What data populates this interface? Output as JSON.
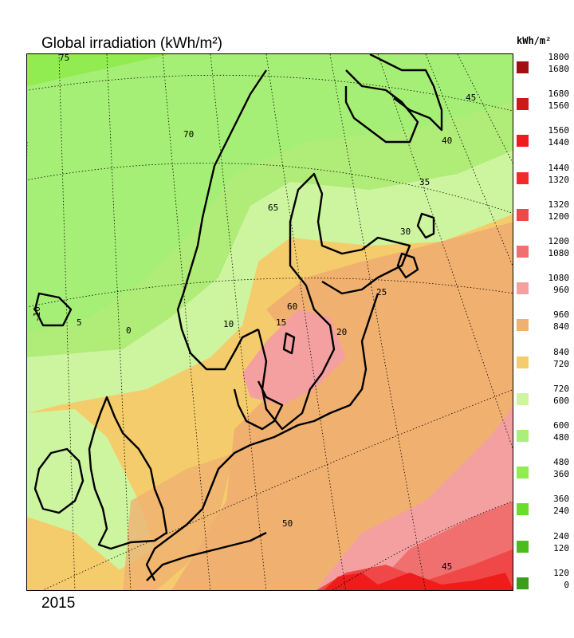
{
  "title": "Global irradiation (kWh/m²)",
  "year": "2015",
  "legend": {
    "unit": "kWh/m²",
    "items": [
      {
        "hi": "1800",
        "lo": "1680",
        "color": "#a01010"
      },
      {
        "hi": "1680",
        "lo": "1560",
        "color": "#cc1a1a"
      },
      {
        "hi": "1560",
        "lo": "1440",
        "color": "#ee1c1c"
      },
      {
        "hi": "1440",
        "lo": "1320",
        "color": "#f22a2a"
      },
      {
        "hi": "1320",
        "lo": "1200",
        "color": "#f04848"
      },
      {
        "hi": "1200",
        "lo": "1080",
        "color": "#f07070"
      },
      {
        "hi": "1080",
        "lo": "960",
        "color": "#f4a0a0"
      },
      {
        "hi": "960",
        "lo": "840",
        "color": "#f0b070"
      },
      {
        "hi": "840",
        "lo": "720",
        "color": "#f5cc6c"
      },
      {
        "hi": "720",
        "lo": "600",
        "color": "#cdf5a0"
      },
      {
        "hi": "600",
        "lo": "480",
        "color": "#a8f07a"
      },
      {
        "hi": "480",
        "lo": "360",
        "color": "#90ec50"
      },
      {
        "hi": "360",
        "lo": "240",
        "color": "#6cdc2c"
      },
      {
        "hi": "240",
        "lo": "120",
        "color": "#4cbc1c"
      },
      {
        "hi": "120",
        "lo": "0",
        "color": "#3c9c1c"
      }
    ]
  },
  "graticule": {
    "latitude_labels": [
      "75",
      "70",
      "65",
      "60",
      "50",
      "45",
      "40",
      "45"
    ],
    "longitude_labels": [
      "-10",
      "5",
      "0",
      "10",
      "15",
      "20",
      "25",
      "30",
      "35"
    ]
  }
}
